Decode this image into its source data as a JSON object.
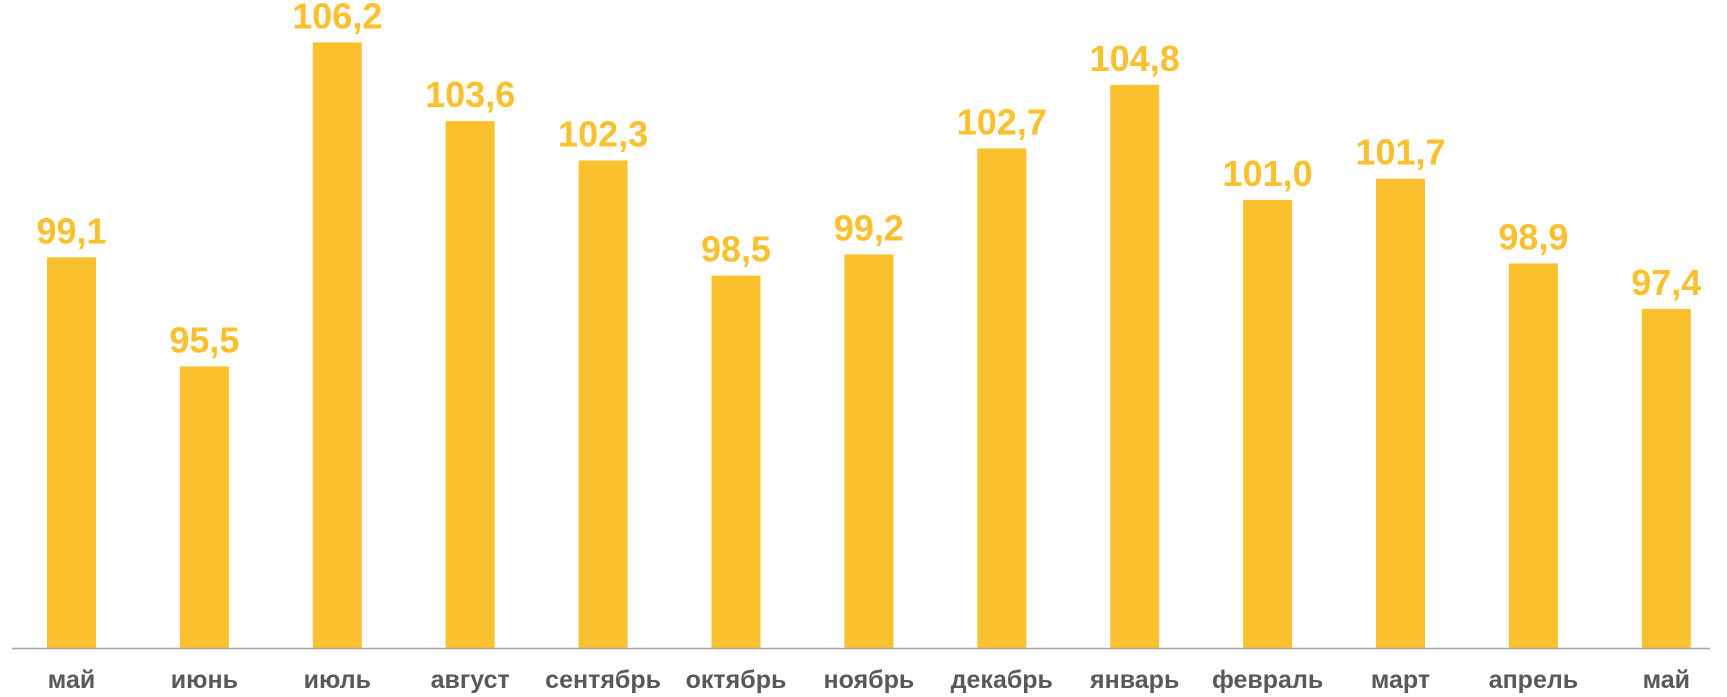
{
  "chart_data": {
    "type": "bar",
    "title": "",
    "xlabel": "",
    "ylabel": "",
    "categories": [
      "май",
      "июнь",
      "июль",
      "август",
      "сентябрь",
      "октябрь",
      "ноябрь",
      "декабрь",
      "январь",
      "февраль",
      "март",
      "апрель",
      "май"
    ],
    "values": [
      99.1,
      95.5,
      106.2,
      103.6,
      102.3,
      98.5,
      99.2,
      102.7,
      104.8,
      101.0,
      101.7,
      98.9,
      97.4
    ],
    "value_labels": [
      "99,1",
      "95,5",
      "106,2",
      "103,6",
      "102,3",
      "98,5",
      "99,2",
      "102,7",
      "104,8",
      "101,0",
      "101,7",
      "98,9",
      "97,4"
    ],
    "ylim": [
      86.2,
      107.6
    ],
    "grid": false,
    "legend": "none",
    "bar_color": "#FBC02D",
    "label_color": "#FBC02D",
    "axis_color": "#A6A6A6",
    "tick_color": "#595959"
  }
}
